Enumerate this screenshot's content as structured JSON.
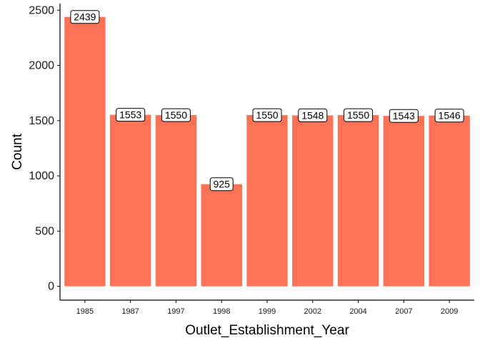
{
  "colors": {
    "bar": "#FF7256",
    "axis": "#000000",
    "label_fill": "#ffffff",
    "label_border": "#000000"
  },
  "chart_data": {
    "type": "bar",
    "categories": [
      "1985",
      "1987",
      "1997",
      "1998",
      "1999",
      "2002",
      "2004",
      "2007",
      "2009"
    ],
    "values": [
      2439,
      1553,
      1550,
      925,
      1550,
      1548,
      1550,
      1543,
      1546
    ],
    "data_labels": [
      "2439",
      "1553",
      "1550",
      "925",
      "1550",
      "1548",
      "1550",
      "1543",
      "1546"
    ],
    "title": "",
    "xlabel": "Outlet_Establishment_Year",
    "ylabel": "Count",
    "ylim": [
      -125,
      2560
    ],
    "yticks": [
      0,
      500,
      1000,
      1500,
      2000,
      2500
    ],
    "ytick_labels": [
      "0",
      "500",
      "1000",
      "1500",
      "2000",
      "2500"
    ],
    "grid": false,
    "legend": "none"
  }
}
